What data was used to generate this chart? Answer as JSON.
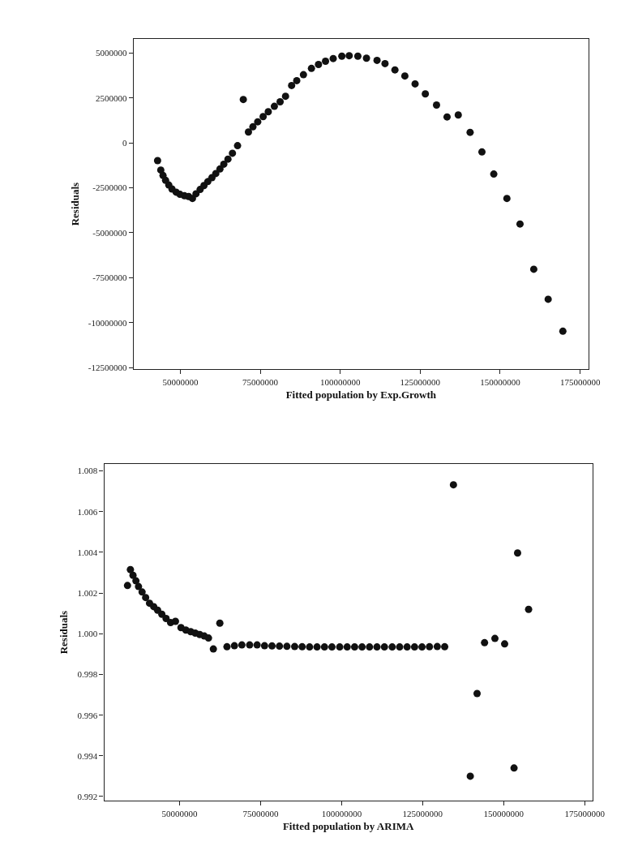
{
  "chart_data": [
    {
      "type": "scatter",
      "xlabel": "Fitted population by Exp.Growth",
      "ylabel": "Residuals",
      "marker": "circle",
      "xlim": [
        35400000,
        177600000
      ],
      "ylim": [
        -12600000,
        5800000
      ],
      "xticks": [
        50000000,
        75000000,
        100000000,
        125000000,
        150000000,
        175000000
      ],
      "yticks": [
        5000000,
        2500000,
        0,
        -2500000,
        -5000000,
        -7500000,
        -10000000,
        -12500000
      ],
      "series": [
        {
          "color": "#111111",
          "x": [
            42900000,
            43900000,
            44600000,
            45400000,
            46400000,
            47400000,
            48700000,
            49900000,
            51300000,
            52600000,
            53800000,
            54900000,
            56200000,
            57400000,
            58600000,
            59900000,
            61100000,
            62400000,
            63600000,
            64900000,
            66300000,
            67900000,
            69700000,
            71300000,
            72700000,
            74200000,
            75900000,
            77500000,
            79400000,
            81200000,
            82900000,
            84800000,
            86400000,
            88500000,
            91000000,
            93200000,
            95400000,
            97800000,
            100500000,
            102800000,
            105500000,
            108200000,
            111500000,
            114000000,
            117100000,
            120200000,
            123400000,
            126600000,
            130100000,
            133400000,
            136900000,
            140600000,
            144300000,
            148000000,
            152100000,
            156200000,
            160500000,
            165000000,
            169600000
          ],
          "values": [
            -980000,
            -1510000,
            -1810000,
            -2080000,
            -2340000,
            -2560000,
            -2740000,
            -2860000,
            -2940000,
            -2980000,
            -3090000,
            -2830000,
            -2590000,
            -2370000,
            -2150000,
            -1930000,
            -1700000,
            -1450000,
            -1180000,
            -900000,
            -570000,
            -150000,
            2420000,
            610000,
            900000,
            1180000,
            1470000,
            1740000,
            2040000,
            2290000,
            2600000,
            3200000,
            3470000,
            3800000,
            4150000,
            4370000,
            4550000,
            4700000,
            4830000,
            4860000,
            4830000,
            4720000,
            4600000,
            4420000,
            4070000,
            3730000,
            3290000,
            2730000,
            2110000,
            1450000,
            1560000,
            590000,
            -500000,
            -1730000,
            -3090000,
            -4510000,
            -7030000,
            -8700000,
            -10480000
          ]
        }
      ]
    },
    {
      "type": "scatter",
      "xlabel": "Fitted population by ARIMA",
      "ylabel": "Residuals",
      "marker": "circle",
      "xlim": [
        26700000,
        177400000
      ],
      "ylim": [
        0.99179,
        1.00835
      ],
      "xticks": [
        50000000,
        75000000,
        100000000,
        125000000,
        150000000,
        175000000
      ],
      "yticks": [
        {
          "value": 1.008,
          "label": "1.008"
        },
        {
          "value": 1.006,
          "label": "1.006"
        },
        {
          "value": 1.004,
          "label": "1.004"
        },
        {
          "value": 1.002,
          "label": "1.002"
        },
        {
          "value": 1.0,
          "label": "1.000"
        },
        {
          "value": 0.998,
          "label": "0.998"
        },
        {
          "value": 0.996,
          "label": "0.996"
        },
        {
          "value": 0.994,
          "label": "0.994"
        },
        {
          "value": 0.992,
          "label": "0.992"
        }
      ],
      "series": [
        {
          "color": "#111111",
          "x": [
            33900000,
            34800000,
            35600000,
            36500000,
            37300000,
            38400000,
            39500000,
            40700000,
            42000000,
            43200000,
            44500000,
            45800000,
            47200000,
            48700000,
            50400000,
            51900000,
            53400000,
            54800000,
            56200000,
            57600000,
            58900000,
            60400000,
            62400000,
            64600000,
            66900000,
            69200000,
            71600000,
            73900000,
            76200000,
            78500000,
            80800000,
            83100000,
            85500000,
            87800000,
            90100000,
            92400000,
            94700000,
            97000000,
            99400000,
            101700000,
            104000000,
            106300000,
            108600000,
            110900000,
            113200000,
            115600000,
            117900000,
            120200000,
            122500000,
            124800000,
            127100000,
            129500000,
            131800000,
            134500000,
            139700000,
            141800000,
            144100000,
            147300000,
            150300000,
            153200000,
            154300000,
            157700000
          ],
          "values": [
            1.00237,
            1.00315,
            1.00287,
            1.0026,
            1.00232,
            1.00205,
            1.00178,
            1.0015,
            1.00133,
            1.00116,
            1.00096,
            1.00075,
            1.00055,
            1.00061,
            1.0003,
            1.00018,
            1.0001,
            1.00003,
            0.99996,
            0.99989,
            0.99979,
            0.99925,
            1.00052,
            0.99936,
            0.99941,
            0.99945,
            0.99945,
            0.99945,
            0.99941,
            0.9994,
            0.99939,
            0.99938,
            0.99937,
            0.99936,
            0.99935,
            0.99935,
            0.99935,
            0.99935,
            0.99935,
            0.99935,
            0.99935,
            0.99935,
            0.99935,
            0.99935,
            0.99935,
            0.99935,
            0.99935,
            0.99935,
            0.99935,
            0.99935,
            0.99936,
            0.99937,
            0.99936,
            1.00732,
            0.993,
            0.99706,
            0.99956,
            0.99977,
            0.9995,
            0.9934,
            1.00397,
            1.0012
          ]
        }
      ]
    }
  ]
}
